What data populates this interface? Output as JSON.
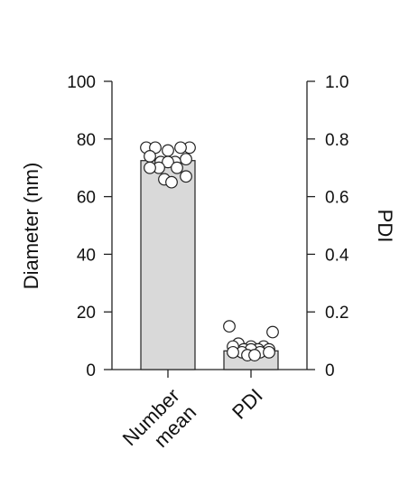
{
  "chart_data": {
    "type": "bar",
    "categories": [
      "Number\nmean",
      "PDI"
    ],
    "category_labels": [
      [
        "Number",
        "mean"
      ],
      [
        "PDI"
      ]
    ],
    "series": [
      {
        "name": "",
        "axis": "left",
        "values": [
          72.5,
          null
        ],
        "error_upper": [
          73.5,
          null
        ],
        "error_lower": [
          71.5,
          null
        ]
      },
      {
        "name": "",
        "axis": "right",
        "values": [
          null,
          0.065
        ],
        "error_upper": [
          null,
          0.09
        ],
        "error_lower": [
          null,
          0.05
        ]
      }
    ],
    "points": [
      {
        "category": 0,
        "axis": "left",
        "values": [
          77,
          77,
          77,
          77,
          76,
          74,
          73,
          72,
          72,
          72,
          70,
          70,
          70,
          67,
          66,
          65
        ]
      },
      {
        "category": 1,
        "axis": "right",
        "values": [
          0.15,
          0.13,
          0.09,
          0.08,
          0.08,
          0.08,
          0.07,
          0.07,
          0.07,
          0.07,
          0.06,
          0.06,
          0.06,
          0.06,
          0.05,
          0.05
        ]
      }
    ],
    "ylabel": "Diameter (nm)",
    "ylabel_right": "PDI",
    "ylim": [
      0,
      100
    ],
    "ylim_right": [
      0,
      1.0
    ],
    "yticks": [
      "0",
      "20",
      "40",
      "60",
      "80",
      "100"
    ],
    "yticks_right": [
      "0",
      "0.2",
      "0.4",
      "0.6",
      "0.8",
      "1.0"
    ],
    "grid": false,
    "colors": {
      "bar_fill": "#d9d9d9",
      "bar_stroke": "#222222",
      "point_fill": "#ffffff",
      "point_stroke": "#222222",
      "axis": "#222222"
    }
  }
}
